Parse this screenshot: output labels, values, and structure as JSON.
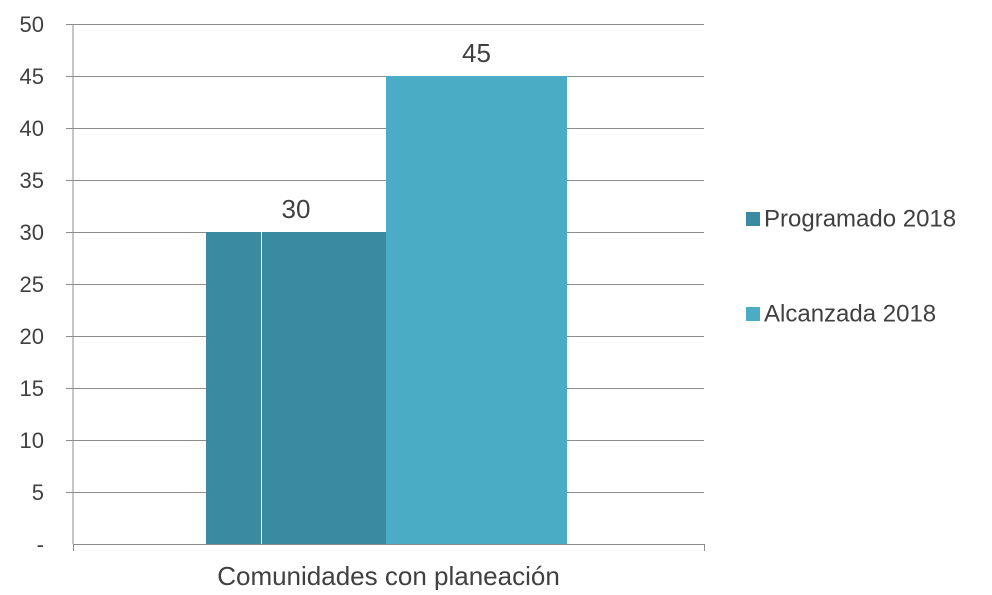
{
  "chart_data": {
    "type": "bar",
    "categories": [
      "Comunidades con planeación"
    ],
    "series": [
      {
        "name": "Programado 2018",
        "values": [
          30
        ],
        "color": "#3a8aa1"
      },
      {
        "name": "Alcanzada 2018",
        "values": [
          45
        ],
        "color": "#4badc5"
      }
    ],
    "data_labels": [
      "30",
      "45"
    ],
    "yticks": [
      "-",
      "5",
      "10",
      "15",
      "20",
      "25",
      "30",
      "35",
      "40",
      "45",
      "50"
    ],
    "ylim": [
      0,
      50
    ],
    "xlabel": "",
    "ylabel": "",
    "title": "",
    "grid": true,
    "legend_position": "right"
  }
}
